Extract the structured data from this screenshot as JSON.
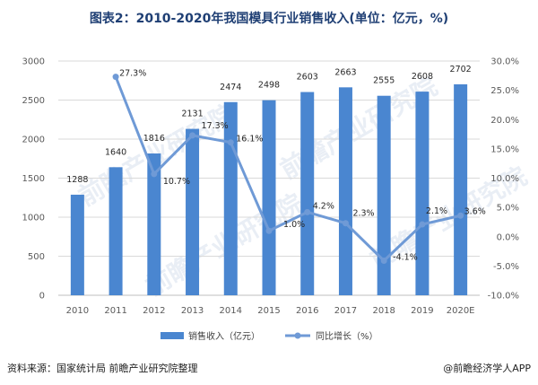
{
  "title": "图表2：2010-2020年我国模具行业销售收入(单位：亿元，%)",
  "source": "资料来源：国家统计局 前瞻产业研究院整理",
  "brand": "@前瞻经济学人APP",
  "watermark_text": "前瞻产业研究院",
  "colors": {
    "bar": "#4a86d0",
    "line": "#6f9ad6",
    "title": "#1f3f74",
    "grid": "#d9d9d9"
  },
  "chart_data": {
    "type": "bar",
    "categories": [
      "2010",
      "2011",
      "2012",
      "2013",
      "2014",
      "2015",
      "2016",
      "2017",
      "2018",
      "2019",
      "2020E"
    ],
    "series": [
      {
        "name": "销售收入（亿元）",
        "type": "bar",
        "axis": "left",
        "values": [
          1288,
          1640,
          1816,
          2131,
          2474,
          2498,
          2603,
          2663,
          2555,
          2608,
          2702
        ]
      },
      {
        "name": "同比增长（%）",
        "type": "line",
        "axis": "right",
        "values": [
          null,
          27.3,
          10.7,
          17.3,
          16.1,
          1.0,
          4.2,
          2.3,
          -4.1,
          2.1,
          3.6
        ],
        "labels": [
          "",
          "27.3%",
          "10.7%",
          "17.3%",
          "16.1%",
          "1.0%",
          "4.2%",
          "2.3%",
          "-4.1%",
          "2.1%",
          "3.6%"
        ]
      }
    ],
    "y_left": {
      "min": 0,
      "max": 3000,
      "ticks": [
        "0",
        "500",
        "1000",
        "1500",
        "2000",
        "2500",
        "3000"
      ]
    },
    "y_right": {
      "min": -10,
      "max": 30,
      "ticks": [
        "-10.0%",
        "-5.0%",
        "0.0%",
        "5.0%",
        "10.0%",
        "15.0%",
        "20.0%",
        "25.0%",
        "30.0%"
      ]
    },
    "grid": true,
    "legend": "bottom"
  }
}
